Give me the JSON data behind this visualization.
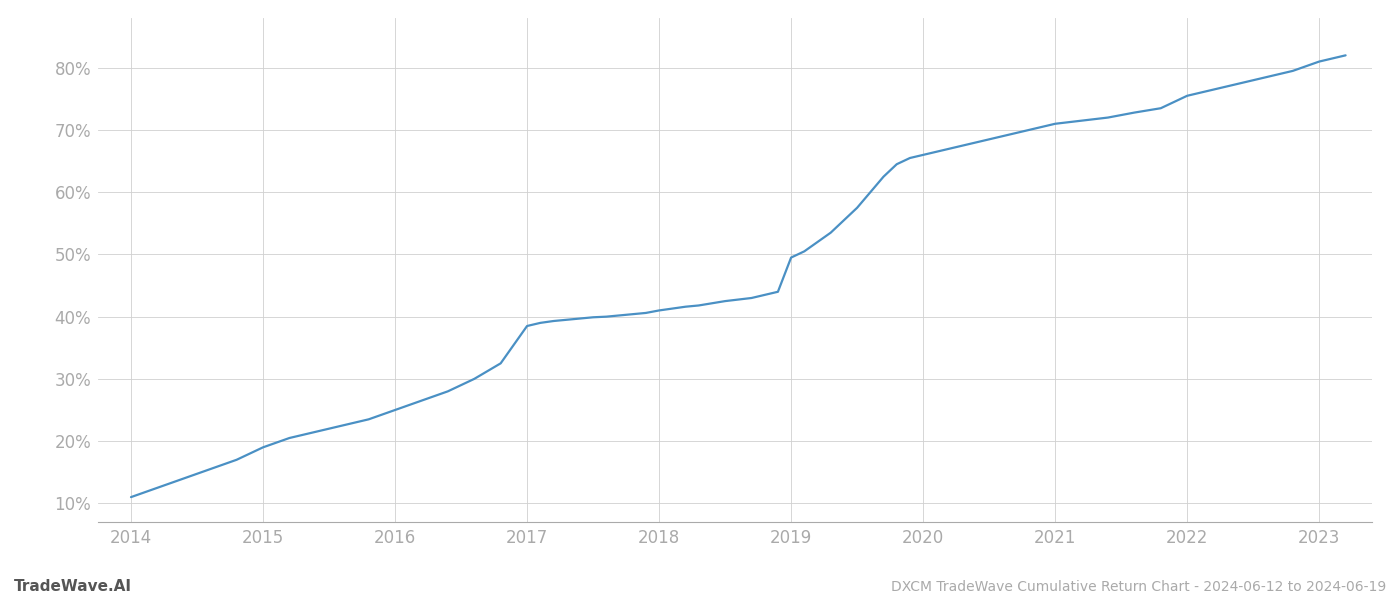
{
  "title": "DXCM TradeWave Cumulative Return Chart - 2024-06-12 to 2024-06-19",
  "watermark": "TradeWave.AI",
  "line_color": "#4a90c4",
  "background_color": "#ffffff",
  "grid_color": "#d0d0d0",
  "x_values": [
    2014.0,
    2014.2,
    2014.4,
    2014.6,
    2014.8,
    2015.0,
    2015.2,
    2015.4,
    2015.6,
    2015.8,
    2016.0,
    2016.2,
    2016.4,
    2016.6,
    2016.8,
    2017.0,
    2017.1,
    2017.2,
    2017.3,
    2017.4,
    2017.5,
    2017.6,
    2017.7,
    2017.8,
    2017.9,
    2018.0,
    2018.1,
    2018.2,
    2018.3,
    2018.5,
    2018.7,
    2018.9,
    2019.0,
    2019.1,
    2019.2,
    2019.3,
    2019.4,
    2019.5,
    2019.6,
    2019.7,
    2019.8,
    2019.9,
    2020.0,
    2020.1,
    2020.2,
    2020.3,
    2020.5,
    2020.7,
    2020.9,
    2021.0,
    2021.2,
    2021.4,
    2021.6,
    2021.8,
    2022.0,
    2022.2,
    2022.4,
    2022.6,
    2022.8,
    2023.0,
    2023.2
  ],
  "y_values": [
    11.0,
    12.5,
    14.0,
    15.5,
    17.0,
    19.0,
    20.5,
    21.5,
    22.5,
    23.5,
    25.0,
    26.5,
    28.0,
    30.0,
    32.5,
    38.5,
    39.0,
    39.3,
    39.5,
    39.7,
    39.9,
    40.0,
    40.2,
    40.4,
    40.6,
    41.0,
    41.3,
    41.6,
    41.8,
    42.5,
    43.0,
    44.0,
    49.5,
    50.5,
    52.0,
    53.5,
    55.5,
    57.5,
    60.0,
    62.5,
    64.5,
    65.5,
    66.0,
    66.5,
    67.0,
    67.5,
    68.5,
    69.5,
    70.5,
    71.0,
    71.5,
    72.0,
    72.8,
    73.5,
    75.5,
    76.5,
    77.5,
    78.5,
    79.5,
    81.0,
    82.0
  ],
  "xlim": [
    2013.75,
    2023.4
  ],
  "ylim": [
    7,
    88
  ],
  "yticks": [
    10,
    20,
    30,
    40,
    50,
    60,
    70,
    80
  ],
  "xticks": [
    2014,
    2015,
    2016,
    2017,
    2018,
    2019,
    2020,
    2021,
    2022,
    2023
  ],
  "tick_label_color": "#aaaaaa",
  "spine_color": "#aaaaaa",
  "footer_color": "#555555",
  "line_width": 1.6,
  "figsize": [
    14.0,
    6.0
  ],
  "dpi": 100
}
